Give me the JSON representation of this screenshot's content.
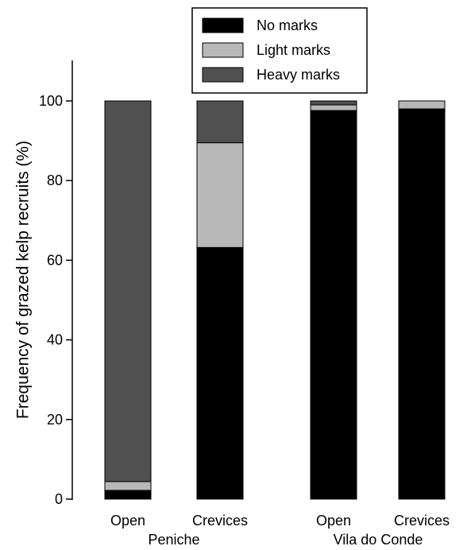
{
  "chart_data": {
    "type": "bar",
    "stacked": true,
    "ylabel": "Frequency of grazed kelp recruits (%)",
    "xlabel": "",
    "ylim": [
      0,
      110
    ],
    "yticks": [
      "0",
      "20",
      "40",
      "60",
      "80",
      "100"
    ],
    "groups": [
      "Peniche",
      "Vila do Conde"
    ],
    "categories": [
      "Open",
      "Crevices",
      "Open",
      "Crevices"
    ],
    "legend_position": "top-center",
    "grid": false,
    "series": [
      {
        "name": "No marks",
        "color": "#000000",
        "values": [
          2.2,
          63.2,
          97.6,
          98.0
        ]
      },
      {
        "name": "Light marks",
        "color": "#b8b8b8",
        "values": [
          2.2,
          26.3,
          1.4,
          2.0
        ]
      },
      {
        "name": "Heavy marks",
        "color": "#505050",
        "values": [
          95.6,
          10.5,
          1.0,
          0.0
        ]
      }
    ]
  }
}
